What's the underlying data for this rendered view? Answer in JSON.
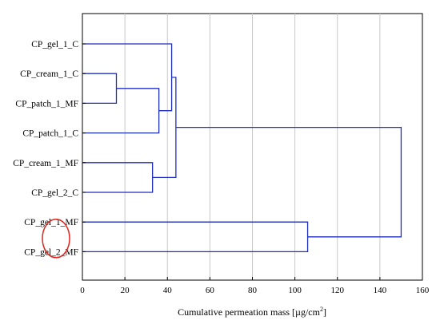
{
  "chart_data": {
    "type": "dendrogram",
    "orientation": "horizontal",
    "xlabel_prefix": "Cumulative permeation mass [µg/cm",
    "xlabel_sup": "2",
    "xlabel_suffix": "]",
    "xlim": [
      0,
      160
    ],
    "xticks": [
      0,
      20,
      40,
      60,
      80,
      100,
      120,
      140,
      160
    ],
    "grid": "vertical",
    "leaves": [
      "CP_gel_1_C",
      "CP_cream_1_C",
      "CP_patch_1_MF",
      "CP_patch_1_C",
      "CP_cream_1_MF",
      "CP_gel_2_C",
      "CP_gel_1_MF",
      "CP_gel_2_MF"
    ],
    "merges": [
      {
        "id": "n1",
        "left": "CP_cream_1_C",
        "right": "CP_patch_1_MF",
        "height": 16
      },
      {
        "id": "n2",
        "left": "CP_cream_1_MF",
        "right": "CP_gel_2_C",
        "height": 33
      },
      {
        "id": "n3",
        "left": "n1",
        "right": "CP_patch_1_C",
        "height": 36
      },
      {
        "id": "n4",
        "left": "CP_gel_1_C",
        "right": "n3",
        "height": 42
      },
      {
        "id": "n5",
        "left": "n4",
        "right": "n2",
        "height": 44
      },
      {
        "id": "n6",
        "left": "CP_gel_1_MF",
        "right": "CP_gel_2_MF",
        "height": 106
      },
      {
        "id": "n7",
        "left": "n5",
        "right": "n6",
        "height": 150
      }
    ],
    "link_color": "#1f2fbf",
    "highlight": {
      "shape": "ellipse",
      "color": "#e0241b",
      "around": [
        "CP_gel_1_MF",
        "CP_gel_2_MF"
      ]
    }
  }
}
